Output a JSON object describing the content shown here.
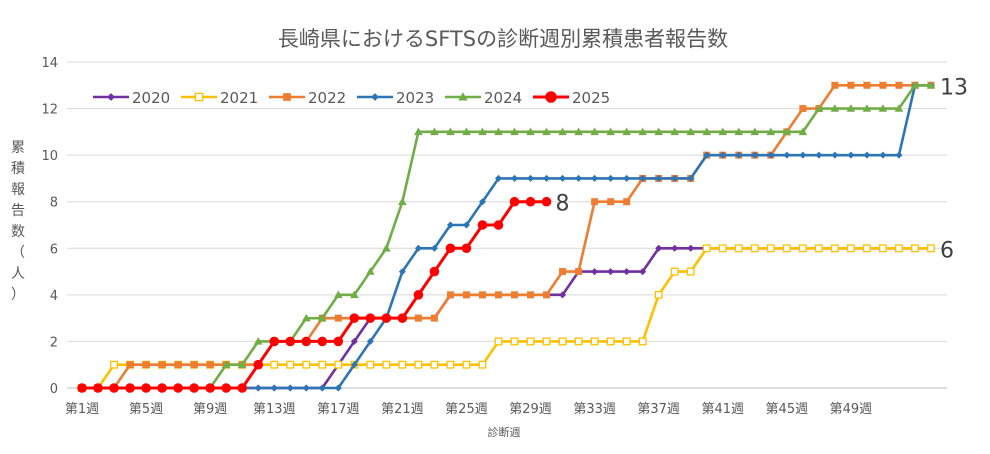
{
  "chart_data": {
    "type": "line",
    "title": "長崎県におけるSFTSの診断週別累積患者報告数",
    "xlabel": "診断週",
    "ylabel_chars": [
      "累",
      "積",
      "報",
      "告",
      "数",
      "（",
      "人",
      "）"
    ],
    "ylim": [
      0,
      14
    ],
    "yticks": [
      "0",
      "2",
      "4",
      "6",
      "8",
      "10",
      "12",
      "14"
    ],
    "x_count": 54,
    "x_tick_labels": [
      "第1週",
      "第5週",
      "第9週",
      "第13週",
      "第17週",
      "第21週",
      "第25週",
      "第29週",
      "第33週",
      "第37週",
      "第41週",
      "第45週",
      "第49週"
    ],
    "x_tick_weeks": [
      1,
      5,
      9,
      13,
      17,
      21,
      25,
      29,
      33,
      37,
      41,
      45,
      49
    ],
    "grid": "horizontal",
    "legend_position": "top-left",
    "series": [
      {
        "name": "2020",
        "color": "#7030A0",
        "marker": "diamond",
        "values": [
          0,
          0,
          0,
          0,
          0,
          0,
          0,
          0,
          0,
          0,
          0,
          0,
          0,
          0,
          0,
          0,
          1,
          2,
          3,
          3,
          3,
          3,
          3,
          4,
          4,
          4,
          4,
          4,
          4,
          4,
          4,
          5,
          5,
          5,
          5,
          5,
          6,
          6,
          6,
          6,
          6,
          6,
          6,
          6,
          6,
          6,
          6,
          6,
          6,
          6,
          6,
          6,
          6,
          6
        ]
      },
      {
        "name": "2021",
        "color": "#FFC000",
        "marker": "square-open",
        "values": [
          0,
          0,
          1,
          1,
          1,
          1,
          1,
          1,
          1,
          1,
          1,
          1,
          1,
          1,
          1,
          1,
          1,
          1,
          1,
          1,
          1,
          1,
          1,
          1,
          1,
          1,
          2,
          2,
          2,
          2,
          2,
          2,
          2,
          2,
          2,
          2,
          4,
          5,
          5,
          6,
          6,
          6,
          6,
          6,
          6,
          6,
          6,
          6,
          6,
          6,
          6,
          6,
          6,
          6
        ]
      },
      {
        "name": "2022",
        "color": "#ED7D31",
        "marker": "square",
        "values": [
          0,
          0,
          0,
          1,
          1,
          1,
          1,
          1,
          1,
          1,
          1,
          1,
          2,
          2,
          2,
          3,
          3,
          3,
          3,
          3,
          3,
          3,
          3,
          4,
          4,
          4,
          4,
          4,
          4,
          4,
          5,
          5,
          8,
          8,
          8,
          9,
          9,
          9,
          9,
          10,
          10,
          10,
          10,
          10,
          11,
          12,
          12,
          13,
          13,
          13,
          13,
          13,
          13,
          13
        ]
      },
      {
        "name": "2023",
        "color": "#2E75B6",
        "marker": "diamond",
        "values": [
          0,
          0,
          0,
          0,
          0,
          0,
          0,
          0,
          0,
          0,
          0,
          0,
          0,
          0,
          0,
          0,
          0,
          1,
          2,
          3,
          5,
          6,
          6,
          7,
          7,
          8,
          9,
          9,
          9,
          9,
          9,
          9,
          9,
          9,
          9,
          9,
          9,
          9,
          9,
          10,
          10,
          10,
          10,
          10,
          10,
          10,
          10,
          10,
          10,
          10,
          10,
          10,
          13,
          13
        ]
      },
      {
        "name": "2024",
        "color": "#70AD47",
        "marker": "triangle",
        "values": [
          0,
          0,
          0,
          0,
          0,
          0,
          0,
          0,
          0,
          1,
          1,
          2,
          2,
          2,
          3,
          3,
          4,
          4,
          5,
          6,
          8,
          11,
          11,
          11,
          11,
          11,
          11,
          11,
          11,
          11,
          11,
          11,
          11,
          11,
          11,
          11,
          11,
          11,
          11,
          11,
          11,
          11,
          11,
          11,
          11,
          11,
          12,
          12,
          12,
          12,
          12,
          12,
          13,
          13
        ]
      },
      {
        "name": "2025",
        "color": "#FF0000",
        "marker": "circle",
        "values": [
          0,
          0,
          0,
          0,
          0,
          0,
          0,
          0,
          0,
          0,
          0,
          1,
          2,
          2,
          2,
          2,
          2,
          3,
          3,
          3,
          3,
          4,
          5,
          6,
          6,
          7,
          7,
          8,
          8,
          8
        ]
      }
    ],
    "end_labels": [
      {
        "text": "13",
        "series": "2023"
      },
      {
        "text": "6",
        "series": "2020"
      },
      {
        "text": "8",
        "series": "2025"
      }
    ]
  }
}
